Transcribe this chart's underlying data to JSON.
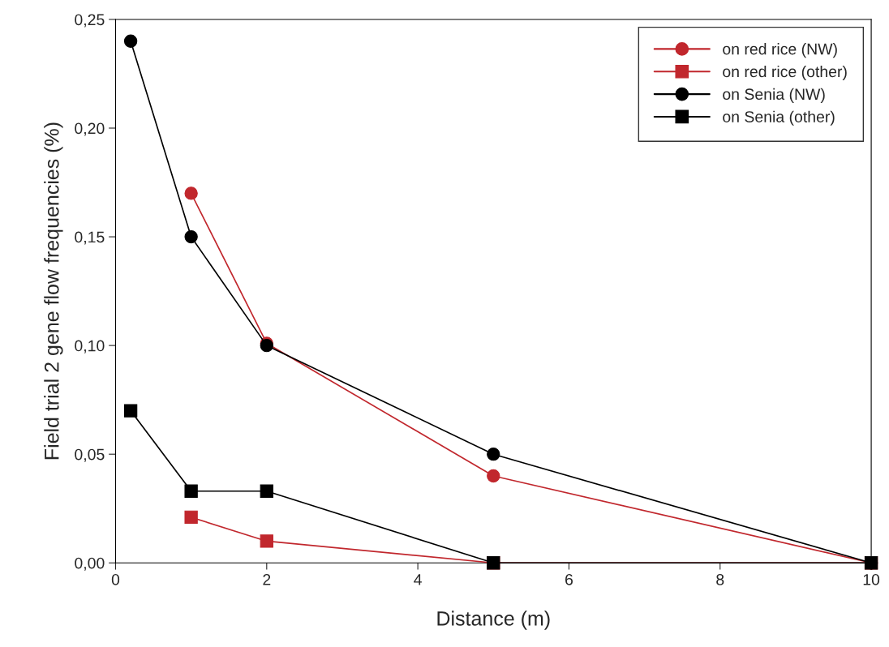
{
  "chart_data": {
    "type": "line",
    "xlabel": "Distance (m)",
    "ylabel": "Field trial 2 gene flow frequencies (%)",
    "series": [
      {
        "name": "on red rice (NW)",
        "color": "#c1272d",
        "marker": "circle",
        "x": [
          1,
          2,
          5,
          10
        ],
        "values": [
          0.17,
          0.101,
          0.04,
          0
        ]
      },
      {
        "name": "on red rice (other)",
        "color": "#c1272d",
        "marker": "square",
        "x": [
          1,
          2,
          5,
          10
        ],
        "values": [
          0.021,
          0.01,
          0,
          0
        ]
      },
      {
        "name": "on Senia (NW)",
        "color": "#000000",
        "marker": "circle",
        "x": [
          0.2,
          1,
          2,
          5,
          10
        ],
        "values": [
          0.24,
          0.15,
          0.1,
          0.05,
          0
        ]
      },
      {
        "name": "on Senia (other)",
        "color": "#000000",
        "marker": "square",
        "x": [
          0.2,
          1,
          2,
          5,
          10
        ],
        "values": [
          0.07,
          0.033,
          0.033,
          0,
          0
        ]
      }
    ],
    "xlim": [
      0,
      10
    ],
    "xticks": [
      0,
      2,
      4,
      6,
      8,
      10
    ],
    "ylim": [
      0,
      0.25
    ],
    "yticks": [
      {
        "value": 0,
        "label": "0,00"
      },
      {
        "value": 0.05,
        "label": "0,05"
      },
      {
        "value": 0.1,
        "label": "0,10"
      },
      {
        "value": 0.15,
        "label": "0,15"
      },
      {
        "value": 0.2,
        "label": "0,20"
      },
      {
        "value": 0.25,
        "label": "0,25"
      }
    ],
    "grid": false,
    "legend": "top right",
    "line_style": "solid"
  }
}
